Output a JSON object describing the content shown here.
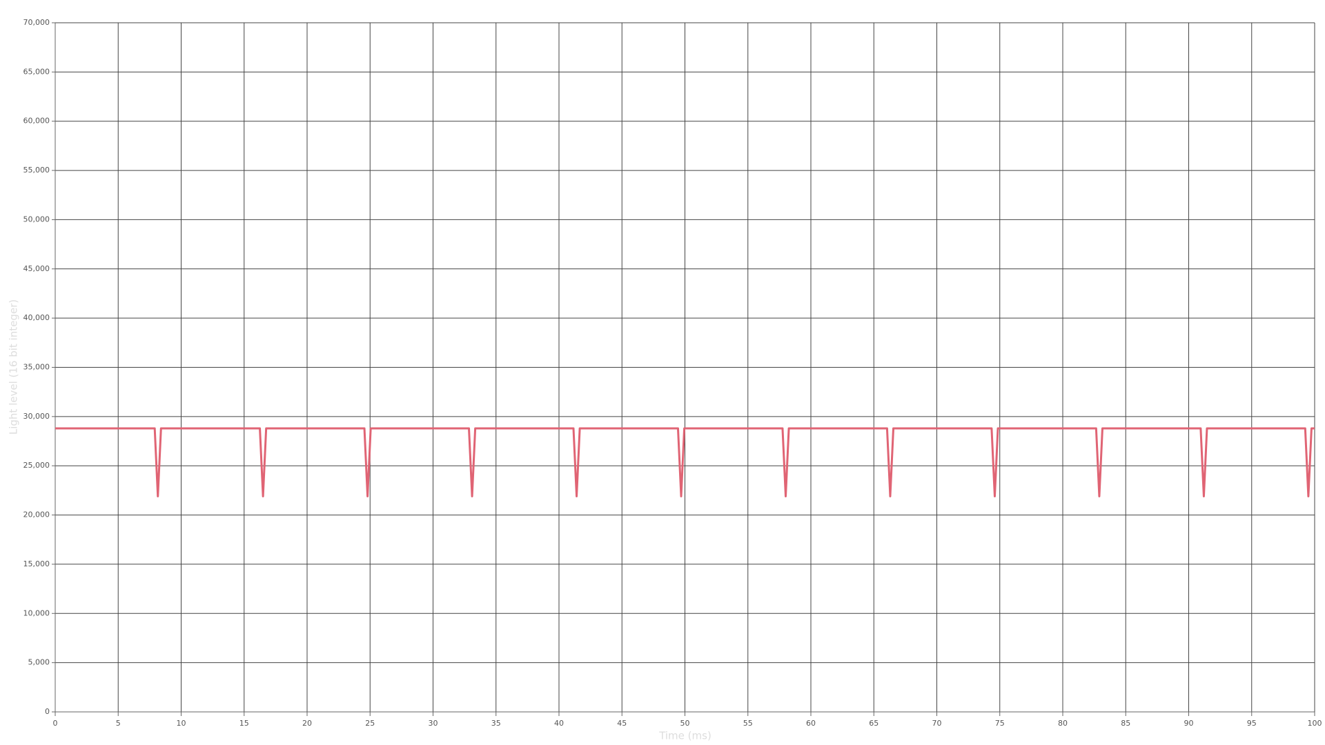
{
  "chart_data": {
    "type": "line",
    "x_label": "Time (ms)",
    "y_label": "Light level (16 bit integer)",
    "x": [
      0,
      7.9,
      8.15,
      8.4,
      16.25,
      16.5,
      16.75,
      24.55,
      24.8,
      25.05,
      32.85,
      33.1,
      33.35,
      41.15,
      41.4,
      41.65,
      49.45,
      49.7,
      49.95,
      57.75,
      58.0,
      58.25,
      66.05,
      66.3,
      66.55,
      74.35,
      74.6,
      74.85,
      82.65,
      82.9,
      83.15,
      90.95,
      91.2,
      91.45,
      99.25,
      99.5,
      99.75,
      100
    ],
    "values": [
      28800,
      28800,
      21900,
      28800,
      28800,
      21900,
      28800,
      28800,
      21900,
      28800,
      28800,
      21900,
      28800,
      28800,
      21900,
      28800,
      28800,
      21900,
      28800,
      28800,
      21900,
      28800,
      28800,
      21900,
      28800,
      28800,
      21900,
      28800,
      28800,
      21900,
      28800,
      28800,
      21900,
      28800,
      28800,
      21900,
      28800,
      28800
    ],
    "color": "#e06474",
    "xlim": [
      0,
      100
    ],
    "ylim": [
      0,
      70000
    ],
    "xticks": [
      0,
      5,
      10,
      15,
      20,
      25,
      30,
      35,
      40,
      45,
      50,
      55,
      60,
      65,
      70,
      75,
      80,
      85,
      90,
      95,
      100
    ],
    "yticks": [
      0,
      {
        "value": 5000,
        "label": "5,000"
      },
      {
        "value": 10000,
        "label": "10,000"
      },
      {
        "value": 15000,
        "label": "15,000"
      },
      {
        "value": 20000,
        "label": "20,000"
      },
      {
        "value": 25000,
        "label": "25,000"
      },
      {
        "value": 30000,
        "label": "30,000"
      },
      {
        "value": 35000,
        "label": "35,000"
      },
      {
        "value": 40000,
        "label": "40,000"
      },
      {
        "value": 45000,
        "label": "45,000"
      },
      {
        "value": 50000,
        "label": "50,000"
      },
      {
        "value": 55000,
        "label": "55,000"
      },
      {
        "value": 60000,
        "label": "60,000"
      },
      {
        "value": 65000,
        "label": "65,000"
      },
      {
        "value": 70000,
        "label": "70,000"
      }
    ],
    "grid": true
  }
}
